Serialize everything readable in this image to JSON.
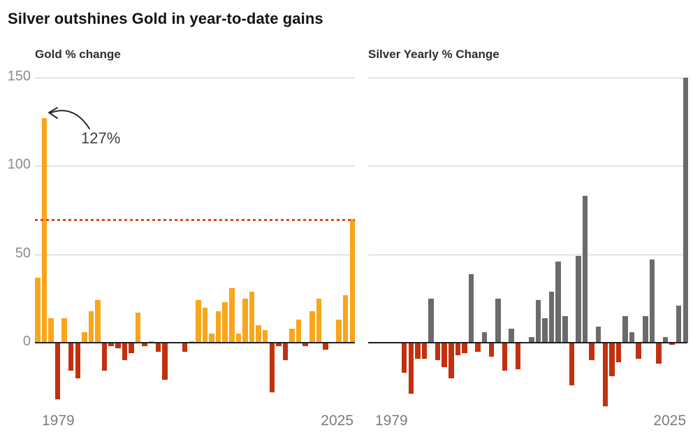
{
  "title": "Silver outshines Gold in year-to-date gains",
  "colors": {
    "background": "#ffffff",
    "title_text": "#121212",
    "subtitle_text": "#2e2e2e",
    "axis_label_text": "#8d8d8d",
    "gridline": "#c9c9c9",
    "baseline": "#1f1f1f",
    "gold_positive": "#F9A61B",
    "silver_positive": "#6B6B6B",
    "negative_red": "#C2310F",
    "reference_line": "#E2491A"
  },
  "chart_data": [
    {
      "type": "bar",
      "title": "Gold % change",
      "ylabel": "",
      "xlabel": "",
      "start_year": 1978,
      "end_year": 2025,
      "x_tick_labels": [
        "1979",
        "2025"
      ],
      "y_ticks": [
        0,
        50,
        100,
        150
      ],
      "ylim": [
        -40,
        150
      ],
      "show_y_tick_labels": true,
      "grid": "horizontal",
      "legend": "none",
      "positive_color": "#F9A61B",
      "negative_color": "#C2310F",
      "reference_line": {
        "value": 70,
        "style": "dotted",
        "color": "#E2491A"
      },
      "annotation": {
        "text": "127%",
        "year": 1979,
        "value": 127
      },
      "values": [
        37,
        127,
        14,
        -32,
        14,
        -16,
        -20,
        6,
        18,
        24,
        -16,
        -2,
        -3,
        -10,
        -6,
        17,
        -2,
        1,
        -5,
        -21,
        0,
        0,
        -5,
        1,
        24,
        20,
        5,
        18,
        23,
        31,
        5,
        25,
        29,
        10,
        7,
        -28,
        -2,
        -10,
        8,
        13,
        -2,
        18,
        25,
        -4,
        0,
        13,
        27,
        70
      ]
    },
    {
      "type": "bar",
      "title": "Silver Yearly % Change",
      "ylabel": "",
      "xlabel": "",
      "start_year": 1983,
      "end_year": 2025,
      "x_tick_labels": [
        "1979",
        "2025"
      ],
      "y_ticks": [
        0,
        50,
        100,
        150
      ],
      "ylim": [
        -40,
        150
      ],
      "show_y_tick_labels": false,
      "grid": "horizontal",
      "legend": "none",
      "positive_color": "#6B6B6B",
      "negative_color": "#C2310F",
      "reference_line": null,
      "annotation": null,
      "note": "2025 bar clipped at 150",
      "values": [
        -17,
        -29,
        -9,
        -9,
        25,
        -10,
        -14,
        -20,
        -7,
        -6,
        39,
        -5,
        6,
        -8,
        25,
        -16,
        8,
        -15,
        0,
        3,
        24,
        14,
        29,
        46,
        15,
        -24,
        49,
        83,
        -10,
        9,
        -36,
        -19,
        -11,
        15,
        6,
        -9,
        15,
        47,
        -12,
        3,
        -1,
        21,
        150
      ]
    }
  ]
}
